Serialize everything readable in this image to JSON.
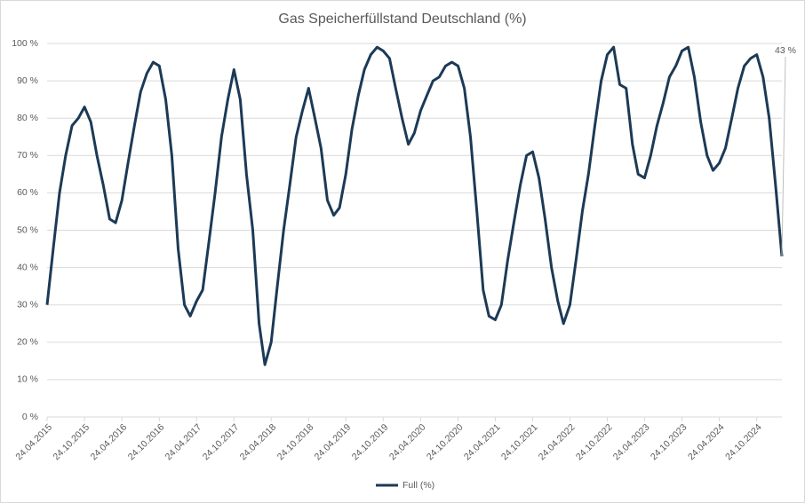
{
  "chart_data": {
    "type": "line",
    "title": "Gas Speicherfüllstand Deutschland (%)",
    "x": [
      "24.04.2015",
      "24.05.2015",
      "24.06.2015",
      "24.07.2015",
      "24.08.2015",
      "24.09.2015",
      "24.10.2015",
      "24.11.2015",
      "24.12.2015",
      "24.01.2016",
      "24.02.2016",
      "24.03.2016",
      "24.04.2016",
      "24.05.2016",
      "24.06.2016",
      "24.07.2016",
      "24.08.2016",
      "24.09.2016",
      "24.10.2016",
      "24.11.2016",
      "24.12.2016",
      "24.01.2017",
      "24.02.2017",
      "24.03.2017",
      "24.04.2017",
      "24.05.2017",
      "24.06.2017",
      "24.07.2017",
      "24.08.2017",
      "24.09.2017",
      "24.10.2017",
      "24.11.2017",
      "24.12.2017",
      "24.01.2018",
      "24.02.2018",
      "24.03.2018",
      "24.04.2018",
      "24.05.2018",
      "24.06.2018",
      "24.07.2018",
      "24.08.2018",
      "24.09.2018",
      "24.10.2018",
      "24.11.2018",
      "24.12.2018",
      "24.01.2019",
      "24.02.2019",
      "24.03.2019",
      "24.04.2019",
      "24.05.2019",
      "24.06.2019",
      "24.07.2019",
      "24.08.2019",
      "24.09.2019",
      "24.10.2019",
      "24.11.2019",
      "24.12.2019",
      "24.01.2020",
      "24.02.2020",
      "24.03.2020",
      "24.04.2020",
      "24.05.2020",
      "24.06.2020",
      "24.07.2020",
      "24.08.2020",
      "24.09.2020",
      "24.10.2020",
      "24.11.2020",
      "24.12.2020",
      "24.01.2021",
      "24.02.2021",
      "24.03.2021",
      "24.04.2021",
      "24.05.2021",
      "24.06.2021",
      "24.07.2021",
      "24.08.2021",
      "24.09.2021",
      "24.10.2021",
      "24.11.2021",
      "24.12.2021",
      "24.01.2022",
      "24.02.2022",
      "24.03.2022",
      "24.04.2022",
      "24.05.2022",
      "24.06.2022",
      "24.07.2022",
      "24.08.2022",
      "24.09.2022",
      "24.10.2022",
      "24.11.2022",
      "24.12.2022",
      "24.01.2023",
      "24.02.2023",
      "24.03.2023",
      "24.04.2023",
      "24.05.2023",
      "24.06.2023",
      "24.07.2023",
      "24.08.2023",
      "24.09.2023",
      "24.10.2023",
      "24.11.2023",
      "24.12.2023",
      "24.01.2024",
      "24.02.2024",
      "24.03.2024",
      "24.04.2024",
      "24.05.2024",
      "24.06.2024",
      "24.07.2024",
      "24.08.2024",
      "24.09.2024",
      "24.10.2024",
      "24.11.2024",
      "24.12.2024",
      "24.01.2025",
      "24.02.2025"
    ],
    "series": [
      {
        "name": "Full (%)",
        "color": "#1c3a56",
        "values": [
          30,
          45,
          60,
          70,
          78,
          80,
          83,
          79,
          70,
          62,
          53,
          52,
          58,
          68,
          78,
          87,
          92,
          95,
          94,
          85,
          70,
          45,
          30,
          27,
          31,
          34,
          47,
          60,
          75,
          85,
          93,
          85,
          65,
          50,
          25,
          14,
          20,
          35,
          50,
          62,
          75,
          82,
          88,
          80,
          72,
          58,
          54,
          56,
          65,
          77,
          86,
          93,
          97,
          99,
          98,
          96,
          88,
          80,
          73,
          76,
          82,
          86,
          90,
          91,
          94,
          95,
          94,
          88,
          75,
          55,
          34,
          27,
          26,
          30,
          42,
          52,
          62,
          70,
          71,
          64,
          53,
          40,
          31,
          25,
          30,
          42,
          55,
          65,
          78,
          90,
          97,
          99,
          89,
          88,
          73,
          65,
          64,
          70,
          78,
          84,
          91,
          94,
          98,
          99,
          91,
          79,
          70,
          66,
          68,
          72,
          80,
          88,
          94,
          96,
          97,
          91,
          80,
          62,
          43
        ]
      }
    ],
    "annotation": "43 %",
    "xlim": [
      "24.04.2015",
      "24.02.2025"
    ],
    "xticks": [
      "24.04.2015",
      "24.10.2015",
      "24.04.2016",
      "24.10.2016",
      "24.04.2017",
      "24.10.2017",
      "24.04.2018",
      "24.10.2018",
      "24.04.2019",
      "24.10.2019",
      "24.04.2020",
      "24.10.2020",
      "24.04.2021",
      "24.10.2021",
      "24.04.2022",
      "24.10.2022",
      "24.04.2023",
      "24.10.2023",
      "24.04.2024",
      "24.10.2024"
    ],
    "ylim": [
      0,
      100
    ],
    "yticks": [
      {
        "value": 0,
        "label": "0 %"
      },
      {
        "value": 10,
        "label": "10 %"
      },
      {
        "value": 20,
        "label": "20 %"
      },
      {
        "value": 30,
        "label": "30 %"
      },
      {
        "value": 40,
        "label": "40 %"
      },
      {
        "value": 50,
        "label": "50 %"
      },
      {
        "value": 60,
        "label": "60 %"
      },
      {
        "value": 70,
        "label": "70 %"
      },
      {
        "value": 80,
        "label": "80 %"
      },
      {
        "value": 90,
        "label": "90 %"
      },
      {
        "value": 100,
        "label": "100 %"
      }
    ],
    "grid": true
  }
}
